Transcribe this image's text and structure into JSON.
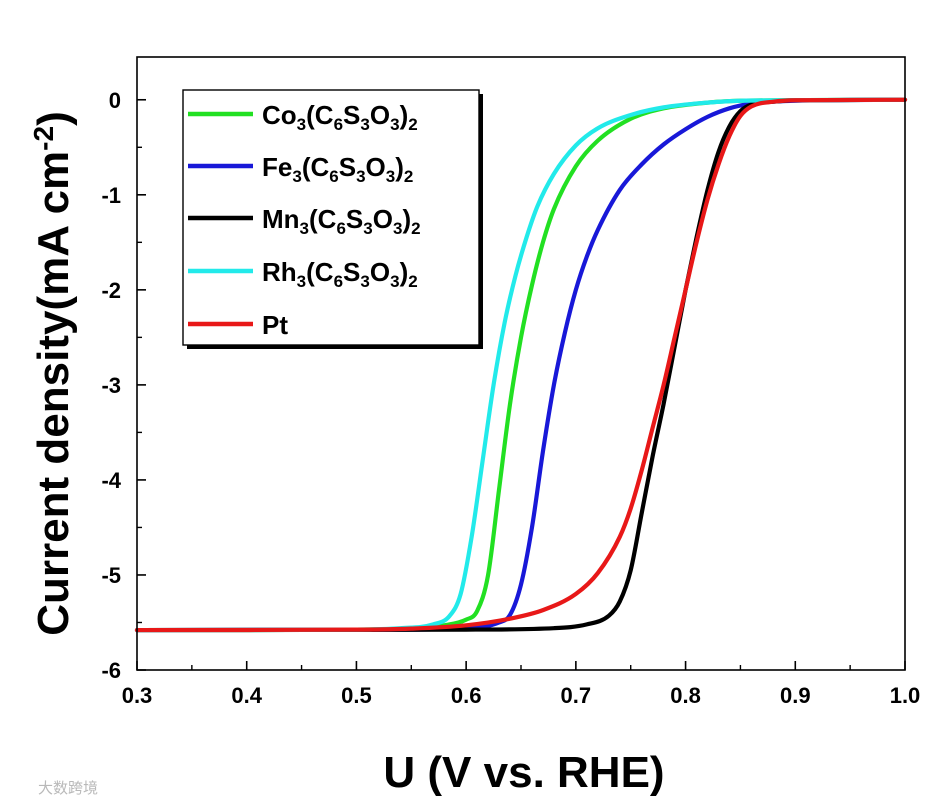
{
  "chart_data": {
    "type": "line",
    "title": "",
    "xlabel": "U (V vs. RHE)",
    "ylabel": "Current density(mA cm-2)",
    "ylabel_parts": {
      "main": "Current density(mA cm",
      "sup": "-2",
      "close": ")"
    },
    "xlim": [
      0.3,
      1.0
    ],
    "ylim": [
      -6,
      0.45
    ],
    "xticks": [
      0.3,
      0.4,
      0.5,
      0.6,
      0.7,
      0.8,
      0.9,
      1.0
    ],
    "xtick_labels": [
      "0.3",
      "0.4",
      "0.5",
      "0.6",
      "0.7",
      "0.8",
      "0.9",
      "1.0"
    ],
    "yticks": [
      0,
      -1,
      -2,
      -3,
      -4,
      -5,
      -6
    ],
    "ytick_labels": [
      "0",
      "-1",
      "-2",
      "-3",
      "-4",
      "-5",
      "-6"
    ],
    "legend_position": "top-left",
    "series": [
      {
        "name": "Co3(C6S3O3)2",
        "label_parts": [
          [
            "Co",
            ""
          ],
          [
            "3",
            "sub"
          ],
          [
            "(C",
            ""
          ],
          [
            "6",
            "sub"
          ],
          [
            "S",
            ""
          ],
          [
            "3",
            "sub"
          ],
          [
            "O",
            ""
          ],
          [
            "3",
            "sub"
          ],
          [
            ")",
            ""
          ],
          [
            "2",
            "sub"
          ]
        ],
        "color": "#22e022",
        "x": [
          0.3,
          0.5,
          0.55,
          0.58,
          0.6,
          0.61,
          0.62,
          0.63,
          0.64,
          0.65,
          0.66,
          0.67,
          0.68,
          0.7,
          0.72,
          0.75,
          0.78,
          0.82,
          0.85,
          1.0
        ],
        "y": [
          -5.58,
          -5.575,
          -5.56,
          -5.53,
          -5.47,
          -5.38,
          -5.0,
          -4.1,
          -3.2,
          -2.5,
          -1.95,
          -1.5,
          -1.15,
          -0.7,
          -0.43,
          -0.2,
          -0.09,
          -0.03,
          -0.01,
          0.0
        ]
      },
      {
        "name": "Fe3(C6S3O3)2",
        "label_parts": [
          [
            "Fe",
            ""
          ],
          [
            "3",
            "sub"
          ],
          [
            "(C",
            ""
          ],
          [
            "6",
            "sub"
          ],
          [
            "S",
            ""
          ],
          [
            "3",
            "sub"
          ],
          [
            "O",
            ""
          ],
          [
            "3",
            "sub"
          ],
          [
            ")",
            ""
          ],
          [
            "2",
            "sub"
          ]
        ],
        "color": "#1818d8",
        "x": [
          0.3,
          0.55,
          0.6,
          0.63,
          0.64,
          0.65,
          0.66,
          0.67,
          0.68,
          0.69,
          0.7,
          0.71,
          0.72,
          0.74,
          0.76,
          0.78,
          0.8,
          0.82,
          0.84,
          0.86,
          0.9,
          1.0
        ],
        "y": [
          -5.58,
          -5.575,
          -5.56,
          -5.5,
          -5.42,
          -5.1,
          -4.5,
          -3.7,
          -3.0,
          -2.45,
          -2.0,
          -1.65,
          -1.37,
          -0.95,
          -0.68,
          -0.47,
          -0.31,
          -0.18,
          -0.09,
          -0.04,
          -0.01,
          0.0
        ]
      },
      {
        "name": "Mn3(C6S3O3)2",
        "label_parts": [
          [
            "Mn",
            ""
          ],
          [
            "3",
            "sub"
          ],
          [
            "(C",
            ""
          ],
          [
            "6",
            "sub"
          ],
          [
            "S",
            ""
          ],
          [
            "3",
            "sub"
          ],
          [
            "O",
            ""
          ],
          [
            "3",
            "sub"
          ],
          [
            ")",
            ""
          ],
          [
            "2",
            "sub"
          ]
        ],
        "color": "#000000",
        "x": [
          0.3,
          0.6,
          0.68,
          0.71,
          0.73,
          0.74,
          0.75,
          0.76,
          0.77,
          0.78,
          0.79,
          0.8,
          0.81,
          0.82,
          0.83,
          0.84,
          0.85,
          0.86,
          0.88,
          0.9,
          1.0
        ],
        "y": [
          -5.58,
          -5.575,
          -5.56,
          -5.52,
          -5.43,
          -5.28,
          -4.95,
          -4.35,
          -3.75,
          -3.2,
          -2.6,
          -2.0,
          -1.45,
          -0.95,
          -0.55,
          -0.28,
          -0.12,
          -0.05,
          -0.02,
          -0.005,
          0.0
        ]
      },
      {
        "name": "Rh3(C6S3O3)2",
        "label_parts": [
          [
            "Rh",
            ""
          ],
          [
            "3",
            "sub"
          ],
          [
            "(C",
            ""
          ],
          [
            "6",
            "sub"
          ],
          [
            "S",
            ""
          ],
          [
            "3",
            "sub"
          ],
          [
            "O",
            ""
          ],
          [
            "3",
            "sub"
          ],
          [
            ")",
            ""
          ],
          [
            "2",
            "sub"
          ]
        ],
        "color": "#22eaea",
        "x": [
          0.3,
          0.5,
          0.54,
          0.57,
          0.585,
          0.595,
          0.605,
          0.615,
          0.625,
          0.635,
          0.645,
          0.655,
          0.665,
          0.68,
          0.7,
          0.72,
          0.75,
          0.78,
          0.82,
          0.85,
          1.0
        ],
        "y": [
          -5.58,
          -5.575,
          -5.56,
          -5.52,
          -5.43,
          -5.2,
          -4.6,
          -3.8,
          -3.0,
          -2.35,
          -1.85,
          -1.45,
          -1.12,
          -0.78,
          -0.48,
          -0.3,
          -0.16,
          -0.08,
          -0.03,
          -0.01,
          0.0
        ]
      },
      {
        "name": "Pt",
        "label_parts": [
          [
            "Pt",
            ""
          ]
        ],
        "color": "#e81818",
        "x": [
          0.3,
          0.5,
          0.55,
          0.6,
          0.64,
          0.67,
          0.7,
          0.72,
          0.74,
          0.75,
          0.76,
          0.77,
          0.78,
          0.79,
          0.8,
          0.81,
          0.82,
          0.83,
          0.84,
          0.85,
          0.86,
          0.88,
          0.9,
          1.0
        ],
        "y": [
          -5.58,
          -5.575,
          -5.565,
          -5.53,
          -5.46,
          -5.37,
          -5.2,
          -4.98,
          -4.6,
          -4.3,
          -3.9,
          -3.45,
          -3.0,
          -2.5,
          -2.0,
          -1.5,
          -1.05,
          -0.68,
          -0.38,
          -0.17,
          -0.07,
          -0.02,
          -0.005,
          0.0
        ]
      }
    ]
  },
  "watermark": "大数跨境"
}
